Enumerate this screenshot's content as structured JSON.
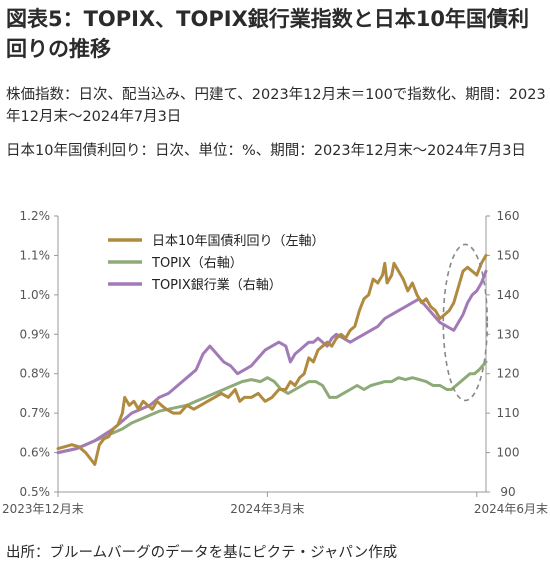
{
  "title": "図表5：TOPIX、TOPIX銀行業指数と日本10年国債利回りの推移",
  "description_1": "株価指数：日次、配当込み、円建て、2023年12月末＝100で指数化、期間：2023年12月末～2024年7月3日",
  "description_2": "日本10年国債利回り：日次、単位：%、期間：2023年12月末～2024年7月3日",
  "source": "出所：ブルームバーグのデータを基にピクテ・ジャパン作成",
  "colors": {
    "jgb": "#b08a3e",
    "topix": "#8daa78",
    "bank": "#a27ab8",
    "axis": "#999999",
    "ellipse": "#888888"
  },
  "chart_data": {
    "type": "line",
    "left_axis": {
      "ylim": [
        0.5,
        1.2
      ],
      "ticks": [
        "0.5%",
        "0.6%",
        "0.7%",
        "0.8%",
        "0.9%",
        "1.0%",
        "1.1%",
        "1.2%"
      ]
    },
    "right_axis": {
      "ylim": [
        90,
        160
      ],
      "ticks": [
        "90",
        "100",
        "110",
        "120",
        "130",
        "140",
        "150",
        "160"
      ]
    },
    "x_tick_labels": [
      "2023年12月末",
      "2024年3月末",
      "2024年6月末"
    ],
    "x_tick_days": [
      0,
      91,
      182
    ],
    "x_range_days": [
      0,
      186
    ],
    "legend": {
      "placement": "top-left",
      "items": [
        "日本10年国債利回り（左軸）",
        "TOPIX（右軸）",
        "TOPIX銀行業（右軸）"
      ]
    },
    "series": [
      {
        "name": "日本10年国債利回り（左軸）",
        "axis": "left",
        "points": [
          [
            0,
            0.61
          ],
          [
            3,
            0.615
          ],
          [
            6,
            0.62
          ],
          [
            9,
            0.615
          ],
          [
            12,
            0.6
          ],
          [
            14,
            0.585
          ],
          [
            16,
            0.57
          ],
          [
            18,
            0.62
          ],
          [
            20,
            0.635
          ],
          [
            22,
            0.64
          ],
          [
            24,
            0.66
          ],
          [
            26,
            0.67
          ],
          [
            28,
            0.7
          ],
          [
            29,
            0.74
          ],
          [
            31,
            0.72
          ],
          [
            33,
            0.73
          ],
          [
            35,
            0.71
          ],
          [
            37,
            0.73
          ],
          [
            39,
            0.72
          ],
          [
            41,
            0.71
          ],
          [
            43,
            0.73
          ],
          [
            45,
            0.72
          ],
          [
            47,
            0.71
          ],
          [
            50,
            0.7
          ],
          [
            53,
            0.7
          ],
          [
            56,
            0.72
          ],
          [
            59,
            0.71
          ],
          [
            62,
            0.72
          ],
          [
            65,
            0.73
          ],
          [
            68,
            0.74
          ],
          [
            71,
            0.75
          ],
          [
            74,
            0.74
          ],
          [
            77,
            0.76
          ],
          [
            79,
            0.73
          ],
          [
            81,
            0.74
          ],
          [
            84,
            0.74
          ],
          [
            87,
            0.75
          ],
          [
            90,
            0.73
          ],
          [
            93,
            0.74
          ],
          [
            96,
            0.76
          ],
          [
            99,
            0.76
          ],
          [
            101,
            0.78
          ],
          [
            103,
            0.77
          ],
          [
            105,
            0.79
          ],
          [
            107,
            0.8
          ],
          [
            109,
            0.84
          ],
          [
            111,
            0.83
          ],
          [
            113,
            0.86
          ],
          [
            115,
            0.87
          ],
          [
            117,
            0.88
          ],
          [
            119,
            0.87
          ],
          [
            121,
            0.89
          ],
          [
            123,
            0.9
          ],
          [
            125,
            0.89
          ],
          [
            127,
            0.91
          ],
          [
            129,
            0.92
          ],
          [
            131,
            0.96
          ],
          [
            133,
            0.99
          ],
          [
            135,
            1.0
          ],
          [
            137,
            1.04
          ],
          [
            139,
            1.03
          ],
          [
            141,
            1.05
          ],
          [
            142,
            1.08
          ],
          [
            143,
            1.03
          ],
          [
            145,
            1.05
          ],
          [
            146,
            1.08
          ],
          [
            148,
            1.06
          ],
          [
            150,
            1.04
          ],
          [
            152,
            1.01
          ],
          [
            154,
            1.03
          ],
          [
            156,
            1.0
          ],
          [
            158,
            0.98
          ],
          [
            160,
            0.99
          ],
          [
            162,
            0.97
          ],
          [
            164,
            0.96
          ],
          [
            166,
            0.94
          ],
          [
            168,
            0.95
          ],
          [
            170,
            0.96
          ],
          [
            172,
            0.98
          ],
          [
            174,
            1.02
          ],
          [
            176,
            1.06
          ],
          [
            178,
            1.07
          ],
          [
            180,
            1.06
          ],
          [
            182,
            1.05
          ],
          [
            184,
            1.08
          ],
          [
            186,
            1.1
          ]
        ]
      },
      {
        "name": "TOPIX（右軸）",
        "axis": "right",
        "points": [
          [
            0,
            100
          ],
          [
            4,
            100.5
          ],
          [
            8,
            101
          ],
          [
            12,
            102
          ],
          [
            16,
            103
          ],
          [
            20,
            104
          ],
          [
            24,
            105
          ],
          [
            28,
            106
          ],
          [
            32,
            107.5
          ],
          [
            36,
            108.5
          ],
          [
            40,
            109.5
          ],
          [
            44,
            110.5
          ],
          [
            48,
            111
          ],
          [
            52,
            111.5
          ],
          [
            56,
            112
          ],
          [
            60,
            113
          ],
          [
            64,
            114
          ],
          [
            68,
            115
          ],
          [
            72,
            116
          ],
          [
            76,
            117
          ],
          [
            80,
            118
          ],
          [
            84,
            118.5
          ],
          [
            88,
            118
          ],
          [
            91,
            119
          ],
          [
            94,
            118
          ],
          [
            97,
            116
          ],
          [
            100,
            115
          ],
          [
            103,
            116
          ],
          [
            106,
            117
          ],
          [
            109,
            118
          ],
          [
            112,
            118
          ],
          [
            115,
            117
          ],
          [
            118,
            114
          ],
          [
            121,
            114
          ],
          [
            124,
            115
          ],
          [
            127,
            116
          ],
          [
            130,
            117
          ],
          [
            133,
            116
          ],
          [
            136,
            117
          ],
          [
            139,
            117.5
          ],
          [
            142,
            118
          ],
          [
            145,
            118
          ],
          [
            148,
            119
          ],
          [
            151,
            118.5
          ],
          [
            154,
            119
          ],
          [
            157,
            118.5
          ],
          [
            160,
            118
          ],
          [
            163,
            117
          ],
          [
            166,
            117
          ],
          [
            169,
            116
          ],
          [
            171,
            116
          ],
          [
            173,
            117
          ],
          [
            175,
            118
          ],
          [
            177,
            119
          ],
          [
            179,
            120
          ],
          [
            181,
            120
          ],
          [
            183,
            121
          ],
          [
            186,
            123
          ]
        ]
      },
      {
        "name": "TOPIX銀行業（右軸）",
        "axis": "right",
        "points": [
          [
            0,
            100
          ],
          [
            4,
            100.5
          ],
          [
            8,
            101
          ],
          [
            12,
            102
          ],
          [
            16,
            103
          ],
          [
            20,
            104.5
          ],
          [
            24,
            106
          ],
          [
            28,
            108
          ],
          [
            32,
            110
          ],
          [
            36,
            111
          ],
          [
            40,
            112
          ],
          [
            44,
            114
          ],
          [
            48,
            115
          ],
          [
            52,
            117
          ],
          [
            56,
            119
          ],
          [
            60,
            121
          ],
          [
            63,
            125
          ],
          [
            66,
            127
          ],
          [
            69,
            125
          ],
          [
            72,
            123
          ],
          [
            75,
            122
          ],
          [
            78,
            120
          ],
          [
            81,
            121
          ],
          [
            84,
            122
          ],
          [
            87,
            124
          ],
          [
            90,
            126
          ],
          [
            93,
            127
          ],
          [
            96,
            128
          ],
          [
            99,
            127
          ],
          [
            101,
            123
          ],
          [
            103,
            125
          ],
          [
            105,
            126
          ],
          [
            107,
            127
          ],
          [
            109,
            128
          ],
          [
            111,
            128
          ],
          [
            113,
            129
          ],
          [
            115,
            128
          ],
          [
            117,
            127
          ],
          [
            119,
            129
          ],
          [
            121,
            130
          ],
          [
            124,
            129
          ],
          [
            127,
            128
          ],
          [
            130,
            129
          ],
          [
            133,
            130
          ],
          [
            136,
            131
          ],
          [
            139,
            132
          ],
          [
            142,
            134
          ],
          [
            145,
            135
          ],
          [
            148,
            136
          ],
          [
            151,
            137
          ],
          [
            154,
            138
          ],
          [
            157,
            139
          ],
          [
            160,
            137
          ],
          [
            163,
            135
          ],
          [
            166,
            133
          ],
          [
            169,
            132
          ],
          [
            172,
            131
          ],
          [
            174,
            133
          ],
          [
            176,
            135
          ],
          [
            178,
            138
          ],
          [
            180,
            140
          ],
          [
            182,
            141
          ],
          [
            184,
            143
          ],
          [
            186,
            146
          ]
        ]
      }
    ]
  }
}
